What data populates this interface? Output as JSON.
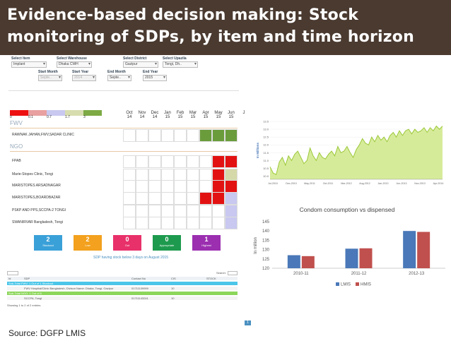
{
  "title": {
    "line1": "Evidence-based decision making: Stock",
    "line2": "monitoring of SDPs, by item and time horizon"
  },
  "filters": {
    "item": {
      "label": "Select Item",
      "value": "Implant"
    },
    "warehouse": {
      "label": "Select Warehouse",
      "value": "Dhaka CWH"
    },
    "district": {
      "label": "Select District",
      "value": "Gazipur"
    },
    "upazila": {
      "label": "Select Upazila",
      "value": "Tongi, Dh.."
    },
    "start_month": {
      "label": "Start Month",
      "value": "Septe.."
    },
    "start_year": {
      "label": "Start Year",
      "value": "2014"
    },
    "end_month": {
      "label": "End Month",
      "value": "Septe.."
    },
    "end_year": {
      "label": "End Year",
      "value": "2015"
    }
  },
  "legend": {
    "colors": [
      "#ee1111",
      "#e8a0a0",
      "#c8c8f0",
      "#d8ddb0",
      "#7daa44"
    ],
    "labels": [
      "0",
      "0.1",
      "0.7",
      "1.7",
      "3"
    ]
  },
  "months": [
    {
      "m": "Oct",
      "y": "14"
    },
    {
      "m": "Nov",
      "y": "14"
    },
    {
      "m": "Dec",
      "y": "14"
    },
    {
      "m": "Jan",
      "y": "15"
    },
    {
      "m": "Feb",
      "y": "15"
    },
    {
      "m": "Mar",
      "y": "15"
    },
    {
      "m": "Apr",
      "y": "15"
    },
    {
      "m": "May",
      "y": "15"
    },
    {
      "m": "Jun",
      "y": "15"
    },
    {
      "m": "J",
      "y": ""
    }
  ],
  "sections": {
    "fwv": "FWV",
    "ngo": "NGO"
  },
  "rows": [
    {
      "label": "RAWNAK JAHAN,FWV,SADAR CLINIC"
    },
    {
      "label": "FPAB"
    },
    {
      "label": "Marie-Stopes Clinic, Tongi"
    },
    {
      "label": "MARISTOPES ARSADNAGAR"
    },
    {
      "label": "MARISTOPES,BOARDBAZAR"
    },
    {
      "label": "PSKP AND PPS,SCCPA-2 TONGI"
    },
    {
      "label": "SWANIRVAR Bangladesh, Tongi"
    }
  ],
  "cell_colors": [
    [
      "",
      "",
      "",
      "",
      "",
      "",
      "#6a9c3c",
      "#6a9c3c",
      "#6a9c3c",
      "#6a9c3c"
    ],
    [
      "",
      "",
      "",
      "",
      "",
      "",
      "",
      "#e31212",
      "#e31212",
      "#e31212"
    ],
    [
      "",
      "",
      "",
      "",
      "",
      "",
      "",
      "#e31212",
      "#d5d8a8",
      "#6a9c3c"
    ],
    [
      "",
      "",
      "",
      "",
      "",
      "",
      "",
      "#e31212",
      "#e31212",
      "#6a9c3c"
    ],
    [
      "",
      "",
      "",
      "",
      "",
      "",
      "#e31212",
      "#e31212",
      "#c8c8f0",
      "#c8c8f0"
    ],
    [
      "",
      "",
      "",
      "",
      "",
      "",
      "",
      "",
      "#c8c8f0",
      "#c8c8f0"
    ],
    [
      "",
      "",
      "",
      "",
      "",
      "",
      "",
      "",
      "#c8c8f0",
      "#c8c8f0"
    ]
  ],
  "tiles": [
    {
      "value": "2",
      "label": "Stockout",
      "color": "#3aa0d8"
    },
    {
      "value": "2",
      "label": "Low",
      "color": "#f3a11e"
    },
    {
      "value": "0",
      "label": "Out",
      "color": "#e8306a"
    },
    {
      "value": "0",
      "label": "Appropriate",
      "color": "#1d9a4e"
    },
    {
      "value": "1",
      "label": "Highest",
      "color": "#9b2fb0"
    }
  ],
  "sdp_title": "SDP having stock below 3 days on August 2015",
  "lower_table": {
    "search": "Search:",
    "header": [
      "Id",
      "SDP",
      "Contact No",
      "CIS",
      "STOCK"
    ],
    "rows": [
      {
        "text": "Sub-Total FWV: 1 Out of 1 Stockout"
      },
      {
        "text": "FWV Hospital/Clinic Bangladesh, Divison Name: Dhaka, Tongi, Gazipur",
        "phone": "01711109999",
        "qty": "10"
      },
      {
        "text": "Sub-Total NGO: 1 Out of 6"
      },
      {
        "text": "SCCPA, Tongi",
        "phone": "01711143241",
        "qty": "10"
      }
    ],
    "footer": "Showing 1 to 2 of 2 entries",
    "page": "1"
  },
  "source": "Source: DGFP LMIS",
  "line_chart": {
    "chart_data": {
      "type": "area",
      "ylabel": "In Millions",
      "y_ticks": [
        10.0,
        10.5,
        11.0,
        11.5,
        12.0,
        12.5,
        13.0,
        13.5
      ],
      "ylim": [
        9.8,
        13.5
      ],
      "x_tick_labels": [
        "Jul-2010",
        "Dec-2010",
        "May-2011",
        "Oct-2011",
        "Mar-2012",
        "Aug-2012",
        "Jan-2013",
        "Jun-2013",
        "Nov-2013",
        "Apr-2014"
      ],
      "values": [
        10.6,
        10.2,
        10.1,
        10.9,
        11.2,
        10.7,
        11.3,
        11.0,
        11.4,
        11.6,
        11.2,
        10.8,
        11.0,
        11.8,
        11.3,
        11.0,
        11.5,
        11.2,
        11.1,
        11.4,
        11.6,
        11.3,
        11.9,
        11.5,
        11.6,
        11.9,
        11.5,
        11.2,
        11.7,
        12.0,
        12.4,
        12.1,
        12.0,
        12.5,
        12.2,
        12.6,
        12.3,
        12.5,
        12.2,
        12.6,
        12.8,
        12.5,
        12.9,
        12.6,
        12.9,
        13.0,
        12.7,
        13.0,
        12.8,
        12.9,
        13.1,
        12.8,
        13.1,
        12.9,
        13.2,
        13.0,
        13.2
      ]
    }
  },
  "bar_chart": {
    "chart_data": {
      "type": "bar",
      "title": "Condom consumption vs dispensed",
      "ylabel": "In million",
      "categories": [
        "2010-11",
        "2011-12",
        "2012-13"
      ],
      "ylim": [
        120,
        145
      ],
      "y_ticks": [
        120,
        125,
        130,
        135,
        140,
        145
      ],
      "series": [
        {
          "name": "LMIS",
          "color": "#4a78b8",
          "values": [
            127,
            130.5,
            140
          ]
        },
        {
          "name": "HMIS",
          "color": "#c0504d",
          "values": [
            126.5,
            130.7,
            139.5
          ]
        }
      ]
    }
  }
}
